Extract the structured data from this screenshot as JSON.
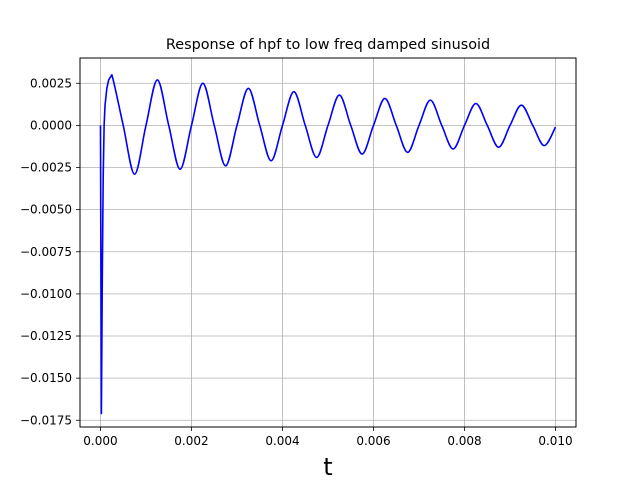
{
  "chart_data": {
    "type": "line",
    "title": "Response of hpf to low freq damped sinusoid",
    "xlabel": "t",
    "ylabel": "",
    "xlim": [
      -0.00045,
      0.01045
    ],
    "ylim": [
      -0.0179,
      0.004
    ],
    "grid": true,
    "xticks": [
      0.0,
      0.002,
      0.004,
      0.006,
      0.008,
      0.01
    ],
    "xtick_labels": [
      "0.000",
      "0.002",
      "0.004",
      "0.006",
      "0.008",
      "0.010"
    ],
    "yticks": [
      0.0025,
      0.0,
      -0.0025,
      -0.005,
      -0.0075,
      -0.01,
      -0.0125,
      -0.015,
      -0.0175
    ],
    "ytick_labels": [
      "0.0025",
      "0.0000",
      "−0.0025",
      "−0.0050",
      "−0.0075",
      "−0.0100",
      "−0.0125",
      "−0.0150",
      "−0.0175"
    ],
    "series": [
      {
        "color": "#0000ff",
        "x": [
          0.0,
          2e-05,
          4e-05,
          6e-05,
          8e-05,
          0.0001,
          0.00014,
          0.00018,
          0.00025,
          0.0005,
          0.00075,
          0.001,
          0.00125,
          0.0015,
          0.00175,
          0.002,
          0.00225,
          0.0025,
          0.00275,
          0.003,
          0.00325,
          0.0035,
          0.00375,
          0.004,
          0.00425,
          0.0045,
          0.00475,
          0.005,
          0.00525,
          0.0055,
          0.00575,
          0.006,
          0.00625,
          0.0065,
          0.00675,
          0.007,
          0.00725,
          0.0075,
          0.00775,
          0.008,
          0.00825,
          0.0085,
          0.00875,
          0.009,
          0.00925,
          0.0095,
          0.00975,
          0.01
        ],
        "y": [
          0.0,
          -0.0171,
          -0.009,
          -0.003,
          0.0,
          0.0012,
          0.0022,
          0.0027,
          0.003,
          0.0,
          -0.0029,
          0.0,
          0.0027,
          0.0,
          -0.0026,
          0.0,
          0.0025,
          0.0,
          -0.0024,
          0.0,
          0.0022,
          0.0,
          -0.0021,
          0.0,
          0.002,
          0.0,
          -0.0019,
          0.0,
          0.0018,
          0.0,
          -0.0017,
          0.0,
          0.0016,
          0.0,
          -0.0016,
          0.0,
          0.0015,
          0.0,
          -0.0014,
          0.0,
          0.0013,
          0.0,
          -0.0013,
          0.0,
          0.0012,
          0.0,
          -0.0012,
          -0.0001
        ]
      }
    ]
  }
}
